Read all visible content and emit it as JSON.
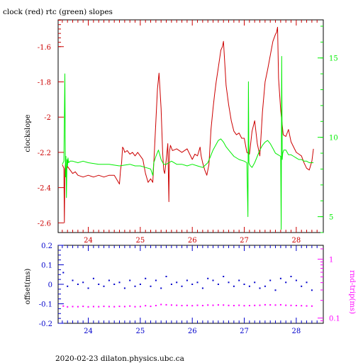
{
  "title": "clock (red) rtc (green) slopes",
  "footer": "2020-02-23 dilaton.physics.ubc.ca",
  "colors": {
    "red": "#cc0000",
    "green": "#00ee00",
    "blue": "#0000cc",
    "magenta": "#ff00ff",
    "axis": "#000000"
  },
  "chart_data": [
    {
      "type": "line",
      "title": "clock (red) rtc (green) slopes",
      "xlabel": "",
      "ylabel": "clockslope",
      "xlim": [
        23.42,
        28.52
      ],
      "ylim": [
        -2.655,
        -1.448
      ],
      "y2lim": [
        4.0,
        17.4
      ],
      "x_ticks": [
        "24",
        "25",
        "26",
        "27",
        "28"
      ],
      "y_ticks": [
        "-1.6",
        "-1.8",
        "-2",
        "-2.2",
        "-2.4",
        "-2.6"
      ],
      "y2_ticks": [
        "15",
        "10",
        "5"
      ],
      "grid": false,
      "series": [
        {
          "name": "clock",
          "axis": "left",
          "color": "#cc0000",
          "x": [
            23.5,
            23.53,
            23.54,
            23.55,
            23.56,
            23.58,
            23.6,
            23.65,
            23.7,
            23.75,
            23.8,
            23.9,
            24.0,
            24.1,
            24.2,
            24.3,
            24.4,
            24.5,
            24.6,
            24.62,
            24.64,
            24.66,
            24.68,
            24.7,
            24.75,
            24.8,
            24.85,
            24.9,
            24.95,
            25.0,
            25.05,
            25.1,
            25.15,
            25.2,
            25.24,
            25.27,
            25.3,
            25.33,
            25.36,
            25.4,
            25.43,
            25.45,
            25.47,
            25.5,
            25.53,
            25.55,
            25.56,
            25.58,
            25.62,
            25.7,
            25.8,
            25.9,
            26.0,
            26.05,
            26.1,
            26.15,
            26.17,
            26.2,
            26.24,
            26.28,
            26.32,
            26.36,
            26.4,
            26.43,
            26.46,
            26.5,
            26.55,
            26.58,
            26.6,
            26.65,
            26.7,
            26.75,
            26.8,
            26.85,
            26.9,
            26.95,
            27.0,
            27.05,
            27.1,
            27.15,
            27.2,
            27.25,
            27.3,
            27.35,
            27.4,
            27.45,
            27.5,
            27.55,
            27.6,
            27.62,
            27.64,
            27.66,
            27.7,
            27.75,
            27.8,
            27.85,
            27.9,
            27.95,
            28.0,
            28.05,
            28.1,
            28.15,
            28.2,
            28.25,
            28.3,
            28.33
          ],
          "y": [
            -2.27,
            -2.29,
            -2.6,
            -2.3,
            -2.27,
            -2.3,
            -2.28,
            -2.3,
            -2.32,
            -2.31,
            -2.33,
            -2.34,
            -2.33,
            -2.34,
            -2.33,
            -2.34,
            -2.33,
            -2.33,
            -2.38,
            -2.3,
            -2.26,
            -2.17,
            -2.18,
            -2.2,
            -2.19,
            -2.21,
            -2.2,
            -2.22,
            -2.2,
            -2.22,
            -2.24,
            -2.32,
            -2.37,
            -2.35,
            -2.37,
            -2.2,
            -2.02,
            -1.84,
            -1.75,
            -1.95,
            -2.2,
            -2.3,
            -2.32,
            -2.24,
            -2.15,
            -2.48,
            -2.2,
            -2.16,
            -2.19,
            -2.18,
            -2.2,
            -2.18,
            -2.24,
            -2.21,
            -2.22,
            -2.17,
            -2.22,
            -2.26,
            -2.3,
            -2.33,
            -2.27,
            -2.07,
            -1.95,
            -1.87,
            -1.8,
            -1.72,
            -1.62,
            -1.6,
            -1.57,
            -1.82,
            -1.93,
            -2.02,
            -2.08,
            -2.1,
            -2.09,
            -2.12,
            -2.12,
            -2.2,
            -2.21,
            -2.08,
            -2.02,
            -2.15,
            -2.22,
            -1.97,
            -1.8,
            -1.73,
            -1.65,
            -1.57,
            -1.53,
            -1.52,
            -1.49,
            -1.78,
            -1.96,
            -2.1,
            -2.11,
            -2.07,
            -2.14,
            -2.17,
            -2.2,
            -2.21,
            -2.22,
            -2.26,
            -2.29,
            -2.3,
            -2.25,
            -2.18
          ]
        },
        {
          "name": "rtc",
          "axis": "right",
          "color": "#00ee00",
          "x": [
            23.5,
            23.53,
            23.55,
            23.56,
            23.57,
            23.58,
            23.59,
            23.6,
            23.61,
            23.62,
            23.65,
            23.7,
            23.8,
            23.9,
            24.0,
            24.2,
            24.4,
            24.6,
            24.8,
            24.9,
            25.0,
            25.1,
            25.2,
            25.24,
            25.26,
            25.3,
            25.35,
            25.4,
            25.45,
            25.5,
            25.55,
            25.6,
            25.7,
            25.8,
            25.9,
            26.0,
            26.1,
            26.2,
            26.3,
            26.35,
            26.4,
            26.45,
            26.5,
            26.55,
            26.6,
            26.65,
            26.7,
            26.75,
            26.8,
            26.9,
            27.0,
            27.05,
            27.07,
            27.08,
            27.09,
            27.1,
            27.12,
            27.15,
            27.2,
            27.25,
            27.3,
            27.35,
            27.4,
            27.45,
            27.5,
            27.55,
            27.6,
            27.65,
            27.7,
            27.71,
            27.72,
            27.73,
            27.74,
            27.76,
            27.8,
            27.85,
            27.9,
            27.95,
            28.0,
            28.05,
            28.1,
            28.15,
            28.2,
            28.25,
            28.3,
            28.33
          ],
          "y": [
            8.3,
            8.5,
            14.0,
            7.5,
            8.8,
            6.2,
            8.6,
            8.2,
            8.7,
            8.4,
            8.5,
            8.5,
            8.4,
            8.5,
            8.4,
            8.3,
            8.3,
            8.2,
            8.3,
            8.2,
            8.2,
            8.1,
            8.0,
            7.6,
            8.4,
            8.8,
            9.2,
            8.6,
            8.3,
            8.3,
            8.4,
            8.5,
            8.3,
            8.3,
            8.2,
            8.3,
            8.2,
            8.1,
            8.4,
            8.8,
            9.2,
            9.5,
            9.8,
            9.9,
            9.7,
            9.4,
            9.2,
            9.0,
            8.8,
            8.6,
            8.5,
            8.4,
            5.0,
            13.5,
            8.4,
            8.3,
            8.2,
            8.1,
            8.4,
            8.8,
            9.2,
            9.5,
            9.7,
            9.8,
            9.6,
            9.3,
            9.0,
            8.9,
            8.8,
            4.2,
            15.1,
            8.6,
            9.0,
            9.2,
            9.2,
            8.9,
            8.9,
            8.8,
            8.7,
            8.6,
            8.6,
            8.5,
            8.5,
            8.4,
            8.4,
            8.4
          ]
        }
      ]
    },
    {
      "type": "scatter",
      "xlabel": "",
      "ylabel": "offset(ms)",
      "y2label": "rnd-trip(ms)",
      "xlim": [
        23.42,
        28.52
      ],
      "ylim": [
        -0.2,
        0.2
      ],
      "y2lim": [
        0.0815,
        1.722
      ],
      "y2_scale": "log",
      "x_ticks": [
        "24",
        "25",
        "26",
        "27",
        "28"
      ],
      "y_ticks": [
        "0.2",
        "0.1",
        "0",
        "-0.1",
        "-0.2"
      ],
      "y2_ticks": [
        "1",
        "0.1"
      ],
      "grid": false,
      "series": [
        {
          "name": "offset",
          "axis": "left",
          "color": "#0000cc",
          "x": [
            23.52,
            23.6,
            23.7,
            23.8,
            23.9,
            24.0,
            24.1,
            24.2,
            24.3,
            24.4,
            24.5,
            24.6,
            24.7,
            24.8,
            24.9,
            25.0,
            25.1,
            25.2,
            25.3,
            25.4,
            25.5,
            25.6,
            25.7,
            25.8,
            25.9,
            26.0,
            26.1,
            26.2,
            26.3,
            26.4,
            26.5,
            26.6,
            26.7,
            26.8,
            26.9,
            27.0,
            27.1,
            27.2,
            27.3,
            27.4,
            27.5,
            27.6,
            27.7,
            27.8,
            27.9,
            28.0,
            28.1,
            28.2,
            28.3
          ],
          "y": [
            0.06,
            -0.01,
            0.02,
            0.0,
            0.01,
            -0.02,
            0.03,
            0.0,
            -0.01,
            0.02,
            0.0,
            0.01,
            -0.02,
            0.02,
            -0.01,
            0.0,
            0.03,
            -0.01,
            0.02,
            -0.02,
            0.04,
            0.0,
            0.01,
            -0.01,
            0.02,
            0.0,
            0.01,
            -0.02,
            0.03,
            0.02,
            0.0,
            0.04,
            0.01,
            -0.01,
            0.02,
            0.0,
            -0.01,
            0.01,
            -0.02,
            -0.01,
            0.02,
            -0.03,
            0.03,
            0.01,
            0.04,
            0.02,
            -0.01,
            0.01,
            -0.03
          ]
        },
        {
          "name": "rnd-trip",
          "axis": "right",
          "color": "#ff00ff",
          "x": [
            23.52,
            23.6,
            23.7,
            23.8,
            23.9,
            24.0,
            24.1,
            24.2,
            24.3,
            24.4,
            24.5,
            24.6,
            24.7,
            24.8,
            24.9,
            25.0,
            25.1,
            25.2,
            25.3,
            25.4,
            25.5,
            25.6,
            25.7,
            25.8,
            25.9,
            26.0,
            26.1,
            26.2,
            26.3,
            26.4,
            26.5,
            26.6,
            26.7,
            26.8,
            26.9,
            27.0,
            27.1,
            27.2,
            27.3,
            27.4,
            27.5,
            27.6,
            27.7,
            27.8,
            27.9,
            28.0,
            28.1,
            28.2,
            28.3
          ],
          "y": [
            0.16,
            0.155,
            0.157,
            0.156,
            0.158,
            0.155,
            0.157,
            0.156,
            0.158,
            0.157,
            0.156,
            0.158,
            0.157,
            0.16,
            0.156,
            0.157,
            0.162,
            0.158,
            0.163,
            0.17,
            0.168,
            0.166,
            0.165,
            0.163,
            0.164,
            0.162,
            0.165,
            0.163,
            0.166,
            0.165,
            0.167,
            0.166,
            0.164,
            0.163,
            0.165,
            0.162,
            0.163,
            0.164,
            0.165,
            0.168,
            0.167,
            0.166,
            0.168,
            0.165,
            0.164,
            0.163,
            0.162,
            0.161,
            0.16
          ]
        }
      ]
    }
  ]
}
